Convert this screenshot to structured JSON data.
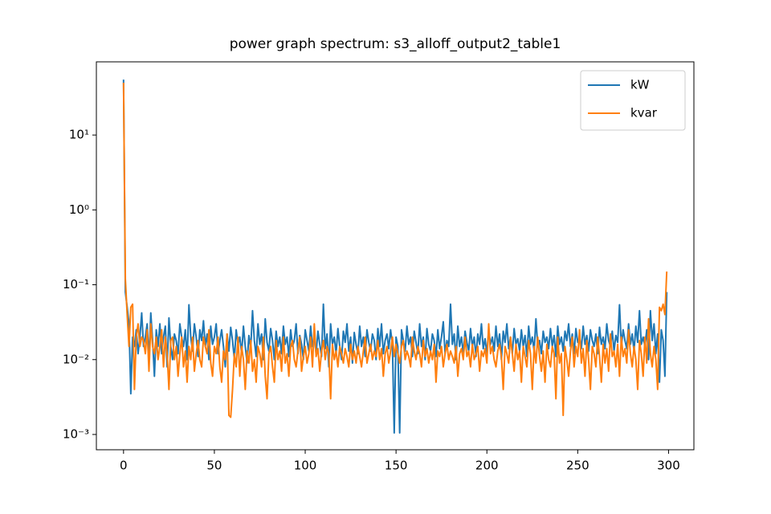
{
  "chart_data": {
    "type": "line",
    "title": "power graph spectrum: s3_alloff_output2_table1",
    "x": [
      0,
      1,
      2,
      3,
      4,
      5,
      6,
      7,
      8,
      9,
      10,
      11,
      12,
      13,
      14,
      15,
      16,
      17,
      18,
      19,
      20,
      21,
      22,
      23,
      24,
      25,
      26,
      27,
      28,
      29,
      30,
      31,
      32,
      33,
      34,
      35,
      36,
      37,
      38,
      39,
      40,
      41,
      42,
      43,
      44,
      45,
      46,
      47,
      48,
      49,
      50,
      51,
      52,
      53,
      54,
      55,
      56,
      57,
      58,
      59,
      60,
      61,
      62,
      63,
      64,
      65,
      66,
      67,
      68,
      69,
      70,
      71,
      72,
      73,
      74,
      75,
      76,
      77,
      78,
      79,
      80,
      81,
      82,
      83,
      84,
      85,
      86,
      87,
      88,
      89,
      90,
      91,
      92,
      93,
      94,
      95,
      96,
      97,
      98,
      99,
      100,
      101,
      102,
      103,
      104,
      105,
      106,
      107,
      108,
      109,
      110,
      111,
      112,
      113,
      114,
      115,
      116,
      117,
      118,
      119,
      120,
      121,
      122,
      123,
      124,
      125,
      126,
      127,
      128,
      129,
      130,
      131,
      132,
      133,
      134,
      135,
      136,
      137,
      138,
      139,
      140,
      141,
      142,
      143,
      144,
      145,
      146,
      147,
      148,
      149,
      150,
      151,
      152,
      153,
      154,
      155,
      156,
      157,
      158,
      159,
      160,
      161,
      162,
      163,
      164,
      165,
      166,
      167,
      168,
      169,
      170,
      171,
      172,
      173,
      174,
      175,
      176,
      177,
      178,
      179,
      180,
      181,
      182,
      183,
      184,
      185,
      186,
      187,
      188,
      189,
      190,
      191,
      192,
      193,
      194,
      195,
      196,
      197,
      198,
      199,
      200,
      201,
      202,
      203,
      204,
      205,
      206,
      207,
      208,
      209,
      210,
      211,
      212,
      213,
      214,
      215,
      216,
      217,
      218,
      219,
      220,
      221,
      222,
      223,
      224,
      225,
      226,
      227,
      228,
      229,
      230,
      231,
      232,
      233,
      234,
      235,
      236,
      237,
      238,
      239,
      240,
      241,
      242,
      243,
      244,
      245,
      246,
      247,
      248,
      249,
      250,
      251,
      252,
      253,
      254,
      255,
      256,
      257,
      258,
      259,
      260,
      261,
      262,
      263,
      264,
      265,
      266,
      267,
      268,
      269,
      270,
      271,
      272,
      273,
      274,
      275,
      276,
      277,
      278,
      279,
      280,
      281,
      282,
      283,
      284,
      285,
      286,
      287,
      288,
      289,
      290,
      291,
      292,
      293,
      294,
      295,
      296,
      297,
      298,
      299
    ],
    "series": [
      {
        "name": "kW",
        "color": "#1f77b4",
        "values": [
          55,
          0.08,
          0.05,
          0.03,
          0.0035,
          0.02,
          0.015,
          0.025,
          0.012,
          0.02,
          0.042,
          0.015,
          0.02,
          0.03,
          0.01,
          0.042,
          0.018,
          0.006,
          0.025,
          0.015,
          0.03,
          0.012,
          0.02,
          0.028,
          0.008,
          0.036,
          0.015,
          0.01,
          0.022,
          0.018,
          0.012,
          0.03,
          0.02,
          0.015,
          0.025,
          0.01,
          0.054,
          0.02,
          0.013,
          0.03,
          0.02,
          0.011,
          0.025,
          0.018,
          0.033,
          0.015,
          0.022,
          0.01,
          0.028,
          0.016,
          0.02,
          0.03,
          0.012,
          0.018,
          0.025,
          0.015,
          0.008,
          0.022,
          0.013,
          0.027,
          0.018,
          0.01,
          0.025,
          0.016,
          0.02,
          0.012,
          0.028,
          0.015,
          0.009,
          0.021,
          0.014,
          0.045,
          0.018,
          0.011,
          0.03,
          0.016,
          0.022,
          0.01,
          0.035,
          0.017,
          0.013,
          0.026,
          0.018,
          0.01,
          0.024,
          0.015,
          0.02,
          0.012,
          0.028,
          0.016,
          0.02,
          0.011,
          0.025,
          0.015,
          0.018,
          0.03,
          0.012,
          0.021,
          0.016,
          0.01,
          0.025,
          0.018,
          0.013,
          0.028,
          0.015,
          0.02,
          0.012,
          0.024,
          0.016,
          0.011,
          0.055,
          0.014,
          0.022,
          0.008,
          0.03,
          0.016,
          0.02,
          0.012,
          0.026,
          0.015,
          0.01,
          0.024,
          0.017,
          0.03,
          0.013,
          0.02,
          0.009,
          0.023,
          0.016,
          0.012,
          0.028,
          0.015,
          0.02,
          0.011,
          0.025,
          0.017,
          0.013,
          0.022,
          0.018,
          0.01,
          0.026,
          0.015,
          0.03,
          0.012,
          0.018,
          0.022,
          0.014,
          0.025,
          0.016,
          0.00105,
          0.02,
          0.015,
          0.00105,
          0.025,
          0.018,
          0.013,
          0.028,
          0.016,
          0.02,
          0.011,
          0.024,
          0.017,
          0.012,
          0.03,
          0.015,
          0.02,
          0.01,
          0.026,
          0.016,
          0.013,
          0.022,
          0.018,
          0.011,
          0.025,
          0.014,
          0.02,
          0.032,
          0.012,
          0.018,
          0.015,
          0.055,
          0.016,
          0.022,
          0.01,
          0.028,
          0.015,
          0.02,
          0.012,
          0.024,
          0.017,
          0.013,
          0.026,
          0.015,
          0.02,
          0.011,
          0.022,
          0.016,
          0.03,
          0.014,
          0.019,
          0.012,
          0.025,
          0.016,
          0.02,
          0.013,
          0.028,
          0.015,
          0.022,
          0.01,
          0.024,
          0.017,
          0.03,
          0.014,
          0.02,
          0.012,
          0.026,
          0.016,
          0.019,
          0.013,
          0.025,
          0.015,
          0.021,
          0.011,
          0.028,
          0.016,
          0.02,
          0.013,
          0.035,
          0.015,
          0.018,
          0.012,
          0.024,
          0.017,
          0.02,
          0.014,
          0.026,
          0.015,
          0.021,
          0.011,
          0.028,
          0.016,
          0.02,
          0.013,
          0.024,
          0.018,
          0.03,
          0.015,
          0.022,
          0.012,
          0.026,
          0.017,
          0.02,
          0.014,
          0.028,
          0.016,
          0.021,
          0.013,
          0.025,
          0.018,
          0.015,
          0.022,
          0.012,
          0.027,
          0.016,
          0.02,
          0.014,
          0.03,
          0.018,
          0.015,
          0.024,
          0.013,
          0.021,
          0.017,
          0.054,
          0.015,
          0.025,
          0.018,
          0.014,
          0.03,
          0.016,
          0.022,
          0.013,
          0.028,
          0.017,
          0.045,
          0.016,
          0.02,
          0.015,
          0.025,
          0.01,
          0.045,
          0.018,
          0.03,
          0.012,
          0.022,
          0.005,
          0.025,
          0.018,
          0.006,
          0.08
        ]
      },
      {
        "name": "kvar",
        "color": "#ff7f0e",
        "values": [
          50,
          0.12,
          0.04,
          0.015,
          0.05,
          0.055,
          0.004,
          0.02,
          0.03,
          0.015,
          0.02,
          0.018,
          0.012,
          0.025,
          0.007,
          0.03,
          0.015,
          0.012,
          0.02,
          0.01,
          0.015,
          0.025,
          0.008,
          0.02,
          0.012,
          0.004,
          0.018,
          0.02,
          0.01,
          0.015,
          0.006,
          0.012,
          0.02,
          0.008,
          0.013,
          0.005,
          0.015,
          0.01,
          0.02,
          0.007,
          0.012,
          0.018,
          0.01,
          0.008,
          0.02,
          0.015,
          0.012,
          0.025,
          0.009,
          0.006,
          0.015,
          0.012,
          0.02,
          0.008,
          0.005,
          0.013,
          0.01,
          0.022,
          0.0018,
          0.0017,
          0.004,
          0.012,
          0.008,
          0.02,
          0.006,
          0.015,
          0.01,
          0.004,
          0.013,
          0.009,
          0.018,
          0.007,
          0.01,
          0.005,
          0.015,
          0.012,
          0.008,
          0.02,
          0.006,
          0.003,
          0.012,
          0.015,
          0.008,
          0.005,
          0.018,
          0.01,
          0.013,
          0.007,
          0.02,
          0.009,
          0.012,
          0.006,
          0.015,
          0.018,
          0.01,
          0.008,
          0.013,
          0.02,
          0.007,
          0.011,
          0.015,
          0.009,
          0.012,
          0.02,
          0.008,
          0.03,
          0.011,
          0.014,
          0.007,
          0.013,
          0.018,
          0.01,
          0.015,
          0.012,
          0.003,
          0.016,
          0.01,
          0.013,
          0.008,
          0.015,
          0.012,
          0.009,
          0.014,
          0.011,
          0.008,
          0.016,
          0.01,
          0.013,
          0.009,
          0.015,
          0.011,
          0.008,
          0.013,
          0.02,
          0.009,
          0.012,
          0.016,
          0.01,
          0.013,
          0.011,
          0.018,
          0.01,
          0.014,
          0.006,
          0.012,
          0.015,
          0.009,
          0.013,
          0.02,
          0.011,
          0.016,
          0.012,
          0.009,
          0.015,
          0.018,
          0.01,
          0.013,
          0.011,
          0.008,
          0.02,
          0.013,
          0.01,
          0.015,
          0.012,
          0.008,
          0.018,
          0.011,
          0.014,
          0.009,
          0.013,
          0.01,
          0.016,
          0.005,
          0.013,
          0.011,
          0.015,
          0.008,
          0.012,
          0.016,
          0.01,
          0.013,
          0.011,
          0.009,
          0.015,
          0.006,
          0.012,
          0.014,
          0.01,
          0.02,
          0.011,
          0.013,
          0.008,
          0.016,
          0.01,
          0.012,
          0.015,
          0.007,
          0.013,
          0.011,
          0.014,
          0.009,
          0.03,
          0.012,
          0.015,
          0.01,
          0.008,
          0.013,
          0.016,
          0.011,
          0.004,
          0.015,
          0.012,
          0.009,
          0.02,
          0.012,
          0.007,
          0.016,
          0.01,
          0.013,
          0.005,
          0.015,
          0.011,
          0.008,
          0.018,
          0.012,
          0.004,
          0.015,
          0.009,
          0.02,
          0.011,
          0.007,
          0.013,
          0.005,
          0.016,
          0.01,
          0.008,
          0.015,
          0.012,
          0.003,
          0.02,
          0.009,
          0.012,
          0.0018,
          0.015,
          0.01,
          0.006,
          0.013,
          0.02,
          0.008,
          0.015,
          0.011,
          0.025,
          0.009,
          0.014,
          0.006,
          0.018,
          0.01,
          0.004,
          0.015,
          0.012,
          0.008,
          0.02,
          0.011,
          0.005,
          0.016,
          0.009,
          0.014,
          0.007,
          0.022,
          0.011,
          0.013,
          0.008,
          0.016,
          0.006,
          0.02,
          0.011,
          0.014,
          0.009,
          0.025,
          0.012,
          0.008,
          0.015,
          0.01,
          0.004,
          0.018,
          0.012,
          0.006,
          0.02,
          0.009,
          0.035,
          0.012,
          0.008,
          0.015,
          0.01,
          0.004,
          0.05,
          0.045,
          0.055,
          0.04,
          0.15
        ]
      }
    ],
    "xlim": [
      -14.95,
      313.95
    ],
    "xticks": [
      0,
      50,
      100,
      150,
      200,
      250,
      300
    ],
    "ylim": [
      0.000625,
      95
    ],
    "ylog": true,
    "yticks": [
      {
        "value": 0.001,
        "label": "10⁻³"
      },
      {
        "value": 0.01,
        "label": "10⁻²"
      },
      {
        "value": 0.1,
        "label": "10⁻¹"
      },
      {
        "value": 1,
        "label": "10⁰"
      },
      {
        "value": 10,
        "label": "10¹"
      }
    ],
    "grid": false,
    "legend": "upper right"
  }
}
